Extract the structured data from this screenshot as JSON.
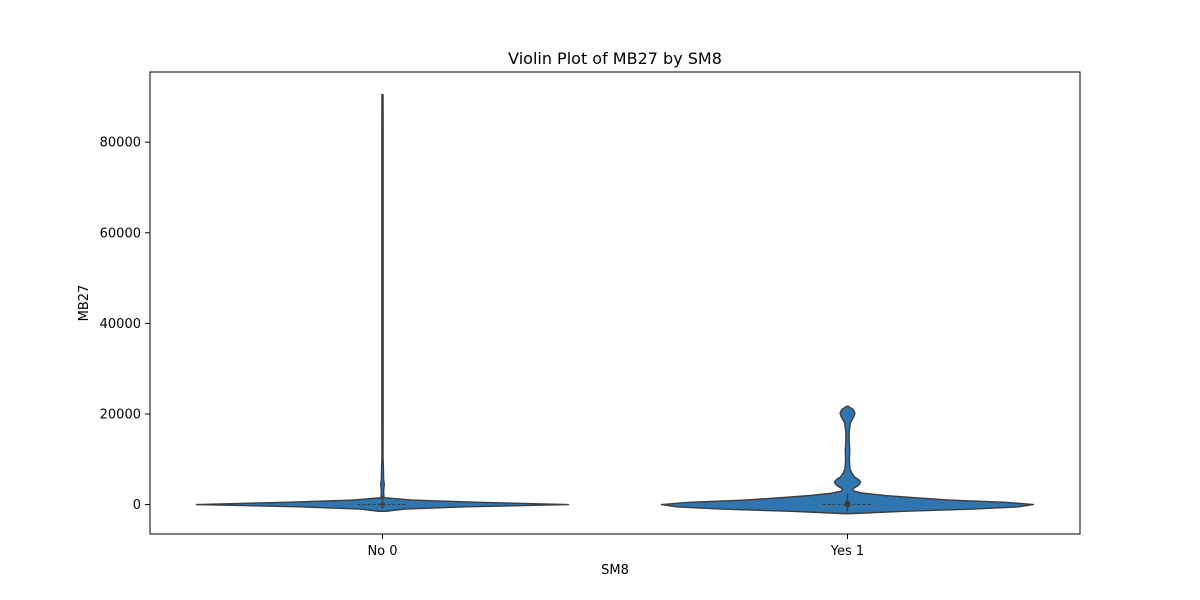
{
  "chart_data": {
    "type": "violin",
    "title": "Violin Plot of MB27 by SM8",
    "xlabel": "SM8",
    "ylabel": "MB27",
    "categories": [
      "No 0",
      "Yes 1"
    ],
    "ylim": [
      -6500,
      95500
    ],
    "yticks": [
      0,
      20000,
      40000,
      60000,
      80000
    ],
    "ytick_labels": [
      "0",
      "20000",
      "40000",
      "60000",
      "80000"
    ],
    "grid": false,
    "fill_color": "#2f75b0",
    "edge_color": "#3d3d3d",
    "violins": [
      {
        "category": "No 0",
        "median": 0,
        "q1": -200,
        "q3": 300,
        "whisker_low": -800,
        "whisker_high": 2000,
        "profile": [
          [
            -1500,
            0.02
          ],
          [
            -1000,
            0.12
          ],
          [
            -500,
            0.45
          ],
          [
            0,
            1.0
          ],
          [
            500,
            0.52
          ],
          [
            1000,
            0.16
          ],
          [
            1500,
            0.008
          ],
          [
            3000,
            0.006
          ],
          [
            4500,
            0.01
          ],
          [
            5500,
            0.006
          ],
          [
            8000,
            0.005
          ],
          [
            10500,
            0.003
          ],
          [
            20000,
            0.0035
          ],
          [
            40000,
            0.0035
          ],
          [
            60000,
            0.0035
          ],
          [
            80000,
            0.0035
          ],
          [
            90500,
            0.003
          ]
        ]
      },
      {
        "category": "Yes 1",
        "median": 0,
        "q1": -500,
        "q3": 800,
        "whisker_low": -1500,
        "whisker_high": 2500,
        "profile": [
          [
            -2000,
            0.02
          ],
          [
            -1500,
            0.3
          ],
          [
            -1000,
            0.68
          ],
          [
            -500,
            0.92
          ],
          [
            0,
            1.0
          ],
          [
            500,
            0.85
          ],
          [
            1000,
            0.55
          ],
          [
            1500,
            0.36
          ],
          [
            2000,
            0.2
          ],
          [
            2500,
            0.085
          ],
          [
            3000,
            0.03
          ],
          [
            3500,
            0.03
          ],
          [
            4000,
            0.05
          ],
          [
            4500,
            0.065
          ],
          [
            5000,
            0.07
          ],
          [
            5500,
            0.06
          ],
          [
            6000,
            0.04
          ],
          [
            7000,
            0.022
          ],
          [
            8000,
            0.013
          ],
          [
            10000,
            0.01
          ],
          [
            12000,
            0.012
          ],
          [
            14000,
            0.009
          ],
          [
            16000,
            0.009
          ],
          [
            18000,
            0.015
          ],
          [
            19500,
            0.035
          ],
          [
            20200,
            0.04
          ],
          [
            21000,
            0.03
          ],
          [
            21700,
            0.005
          ]
        ]
      }
    ]
  }
}
